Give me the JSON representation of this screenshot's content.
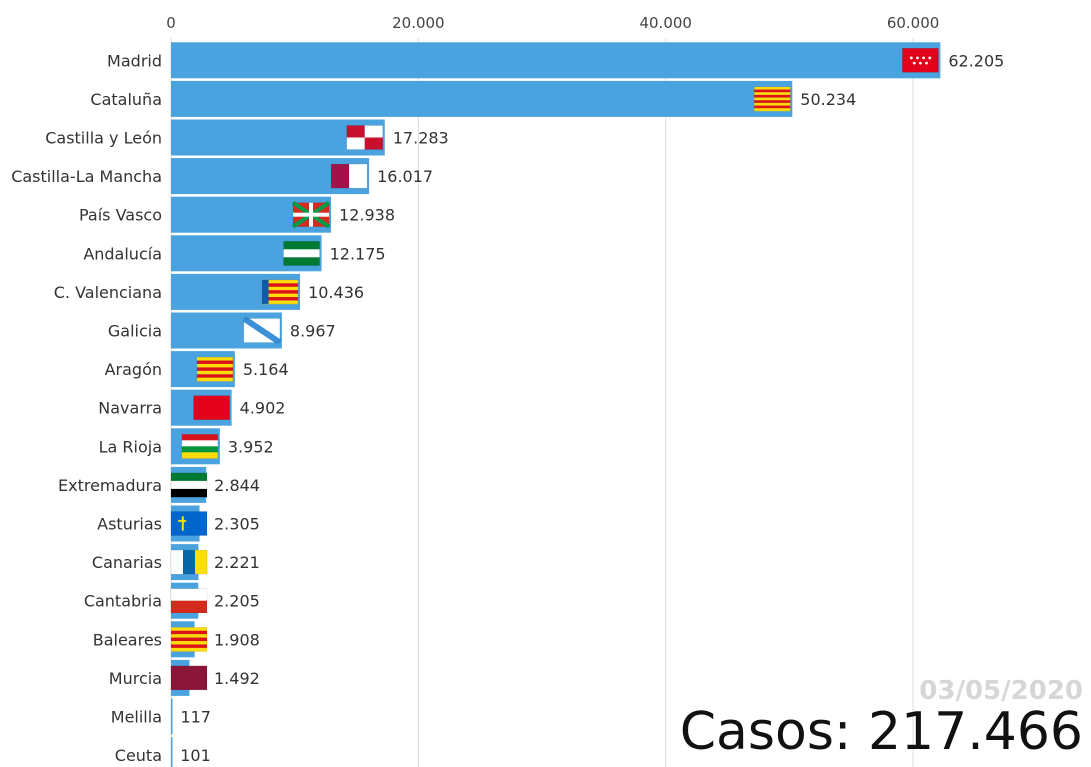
{
  "chart_data": {
    "type": "bar",
    "orientation": "horizontal",
    "categories": [
      "Madrid",
      "Cataluña",
      "Castilla y León",
      "Castilla-La Mancha",
      "País Vasco",
      "Andalucía",
      "C. Valenciana",
      "Galicia",
      "Aragón",
      "Navarra",
      "La Rioja",
      "Extremadura",
      "Asturias",
      "Canarias",
      "Cantabria",
      "Baleares",
      "Murcia",
      "Melilla",
      "Ceuta"
    ],
    "values": [
      62205,
      50234,
      17283,
      16017,
      12938,
      12175,
      10436,
      8967,
      5164,
      4902,
      3952,
      2844,
      2305,
      2221,
      2205,
      1908,
      1492,
      117,
      101
    ],
    "value_labels": [
      "62.205",
      "50.234",
      "17.283",
      "16.017",
      "12.938",
      "12.175",
      "10.436",
      "8.967",
      "5.164",
      "4.902",
      "3.952",
      "2.844",
      "2.305",
      "2.221",
      "2.205",
      "1.908",
      "1.492",
      "117",
      "101"
    ],
    "xticks": [
      0,
      20000,
      40000,
      60000
    ],
    "xtick_labels": [
      "0",
      "20.000",
      "40.000",
      "60.000"
    ],
    "xlim": [
      0,
      62500
    ],
    "grid": true,
    "axis_position": "top",
    "bar_color": "#4aa3df"
  },
  "overlay": {
    "date": "03/05/2020",
    "total_label": "Casos: 217.466"
  },
  "flags": [
    {
      "name": "flag-madrid",
      "type": "stars",
      "colors": [
        "#e3001b",
        "#ffffff"
      ]
    },
    {
      "name": "flag-cataluna",
      "type": "hstripes",
      "colors": [
        "#fcdd09",
        "#da121a",
        "#fcdd09",
        "#da121a",
        "#fcdd09",
        "#da121a",
        "#fcdd09",
        "#da121a",
        "#fcdd09"
      ]
    },
    {
      "name": "flag-castilla-y-leon",
      "type": "quarters",
      "colors": [
        "#c8102e",
        "#ffffff",
        "#ffffff",
        "#c8102e"
      ]
    },
    {
      "name": "flag-castilla-la-mancha",
      "type": "vsplit",
      "colors": [
        "#a1124a",
        "#ffffff"
      ]
    },
    {
      "name": "flag-pais-vasco",
      "type": "ikurrina",
      "colors": [
        "#d52b1e",
        "#009b48",
        "#ffffff"
      ]
    },
    {
      "name": "flag-andalucia",
      "type": "hstripes",
      "colors": [
        "#007a33",
        "#ffffff",
        "#007a33"
      ]
    },
    {
      "name": "flag-valenciana",
      "type": "hstripes-left",
      "colors": [
        "#fcdd09",
        "#da121a",
        "#fcdd09",
        "#da121a",
        "#fcdd09",
        "#da121a",
        "#fcdd09",
        "#0f5aa8"
      ]
    },
    {
      "name": "flag-galicia",
      "type": "diagonal",
      "colors": [
        "#ffffff",
        "#3a8fd6"
      ]
    },
    {
      "name": "flag-aragon",
      "type": "hstripes",
      "colors": [
        "#fcdd09",
        "#da121a",
        "#fcdd09",
        "#da121a",
        "#fcdd09",
        "#da121a",
        "#fcdd09"
      ]
    },
    {
      "name": "flag-navarra",
      "type": "solid",
      "colors": [
        "#e3001b"
      ]
    },
    {
      "name": "flag-la-rioja",
      "type": "hstripes",
      "colors": [
        "#da121a",
        "#ffffff",
        "#009639",
        "#fcdd09"
      ]
    },
    {
      "name": "flag-extremadura",
      "type": "hstripes",
      "colors": [
        "#007a33",
        "#ffffff",
        "#000000"
      ]
    },
    {
      "name": "flag-asturias",
      "type": "cross",
      "colors": [
        "#0066cc",
        "#fcdd09"
      ]
    },
    {
      "name": "flag-canarias",
      "type": "vstripes",
      "colors": [
        "#ffffff",
        "#0768a9",
        "#fcdd09"
      ]
    },
    {
      "name": "flag-cantabria",
      "type": "hstripes",
      "colors": [
        "#ffffff",
        "#d52b1e"
      ]
    },
    {
      "name": "flag-baleares",
      "type": "hstripes",
      "colors": [
        "#fcdd09",
        "#da121a",
        "#fcdd09",
        "#da121a",
        "#fcdd09",
        "#da121a",
        "#fcdd09"
      ]
    },
    {
      "name": "flag-murcia",
      "type": "solid",
      "colors": [
        "#8a1538"
      ]
    },
    {
      "name": "flag-melilla",
      "type": "none",
      "colors": []
    },
    {
      "name": "flag-ceuta",
      "type": "none",
      "colors": []
    }
  ]
}
